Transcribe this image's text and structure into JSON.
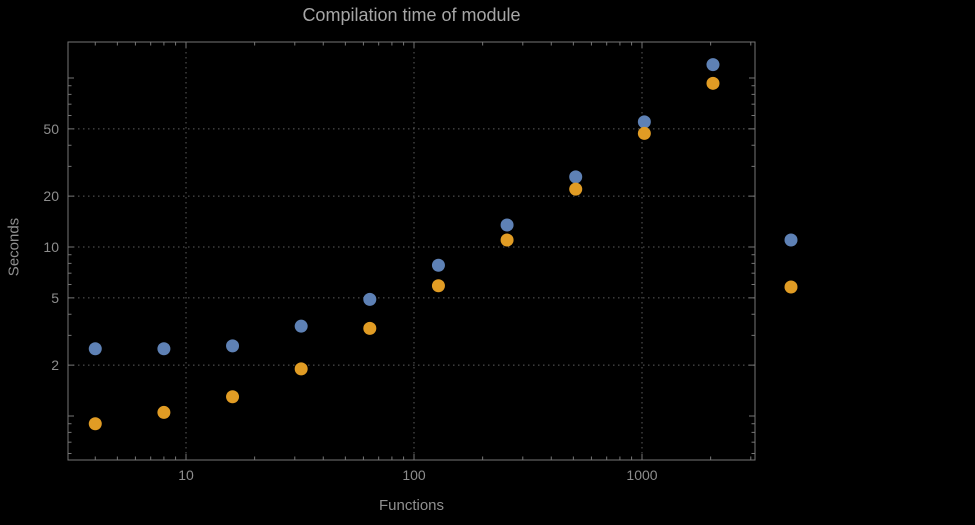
{
  "chart_data": {
    "type": "scatter",
    "title": "Compilation time of module",
    "xlabel": "Functions",
    "ylabel": "Seconds",
    "x_scale": "log",
    "y_scale": "log",
    "x_range": [
      3,
      3200
    ],
    "y_range": [
      0.55,
      165
    ],
    "grid": true,
    "legend_position": "right-outside",
    "x_ticks": [
      10,
      100,
      1000
    ],
    "x_tick_labels": [
      "10",
      "100",
      "1000"
    ],
    "y_ticks": [
      2,
      5,
      10,
      20,
      50
    ],
    "y_tick_labels": [
      "2",
      "5",
      "10",
      "20",
      "50"
    ],
    "x": [
      4,
      8,
      16,
      32,
      64,
      128,
      256,
      512,
      1024,
      2048
    ],
    "series": [
      {
        "name": "blue",
        "color": "#5e81b5",
        "values": [
          2.5,
          2.5,
          2.6,
          3.4,
          4.9,
          7.8,
          13.5,
          26,
          55,
          120
        ]
      },
      {
        "name": "orange",
        "color": "#e19c24",
        "values": [
          0.9,
          1.05,
          1.3,
          1.9,
          3.3,
          5.9,
          11,
          22,
          47,
          93
        ]
      }
    ],
    "legend": {
      "position": "right-outside",
      "labels_visible": false,
      "marker_colors": [
        "#5e81b5",
        "#e19c24"
      ]
    },
    "colors": {
      "background": "#000000",
      "frame": "#767676",
      "grid": "#5c5c5c",
      "title": "#a6a6a6",
      "axis_label": "#8f8f8f",
      "tick_label": "#8d8d8d"
    }
  }
}
